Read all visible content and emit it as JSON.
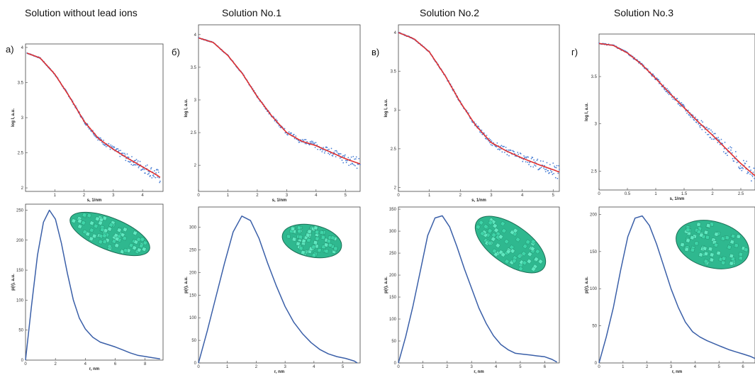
{
  "columns": [
    {
      "title": "Solution without lead ions",
      "letter": "а)"
    },
    {
      "title": "Solution No.1",
      "letter": "б)"
    },
    {
      "title": "Solution No.2",
      "letter": "в)"
    },
    {
      "title": "Solution No.3",
      "letter": "г)"
    }
  ],
  "colors": {
    "fit": "#e03030",
    "exp": "#4a7fd4",
    "pr": "#3a5fa8",
    "model": "#3fd4a8"
  },
  "chart_data": [
    {
      "type": "scatter",
      "panel": "а) scattering",
      "xlabel": "s, 1/nm",
      "ylabel": "log I, a.u.",
      "xlim": [
        0,
        4.7
      ],
      "ylim": [
        1.95,
        4.05
      ],
      "xticks": [
        1,
        2,
        3,
        4
      ],
      "yticks": [
        2,
        2.5,
        3,
        3.5,
        4
      ],
      "fit": {
        "x": [
          0.05,
          0.5,
          1,
          1.5,
          2,
          2.5,
          3,
          3.5,
          4,
          4.5,
          4.6
        ],
        "y": [
          3.92,
          3.85,
          3.62,
          3.3,
          2.95,
          2.7,
          2.55,
          2.42,
          2.3,
          2.18,
          2.15
        ]
      }
    },
    {
      "type": "line",
      "panel": "а) p(r)",
      "xlabel": "r, nm",
      "ylabel": "p(r), a.u.",
      "xlim": [
        0,
        9.2
      ],
      "ylim": [
        0,
        260
      ],
      "xticks": [
        0,
        2,
        4,
        6,
        8
      ],
      "yticks": [
        0,
        50,
        100,
        150,
        200,
        250
      ],
      "x": [
        0,
        0.4,
        0.8,
        1.2,
        1.6,
        2,
        2.4,
        2.8,
        3.2,
        3.6,
        4,
        4.5,
        5,
        5.5,
        6,
        6.5,
        7,
        7.5,
        8,
        8.5,
        9
      ],
      "y": [
        0,
        90,
        175,
        230,
        250,
        235,
        195,
        145,
        100,
        70,
        52,
        38,
        30,
        26,
        22,
        17,
        12,
        8,
        6,
        4,
        2
      ]
    },
    {
      "type": "scatter",
      "panel": "б) scattering",
      "xlabel": "s, 1/nm",
      "ylabel": "log I, a.u.",
      "xlim": [
        0,
        5.5
      ],
      "ylim": [
        1.6,
        4.15
      ],
      "xticks": [
        0,
        1,
        2,
        3,
        4,
        5
      ],
      "yticks": [
        2,
        2.5,
        3,
        3.5,
        4
      ],
      "fit": {
        "x": [
          0,
          0.5,
          1,
          1.5,
          2,
          2.5,
          3,
          3.5,
          4,
          4.5,
          5,
          5.5
        ],
        "y": [
          3.95,
          3.88,
          3.68,
          3.4,
          3.05,
          2.75,
          2.5,
          2.37,
          2.3,
          2.2,
          2.1,
          2.02
        ]
      }
    },
    {
      "type": "line",
      "panel": "б) p(r)",
      "xlabel": "r, nm",
      "ylabel": "p(r), a.u.",
      "xlim": [
        0,
        5.6
      ],
      "ylim": [
        0,
        345
      ],
      "xticks": [
        0,
        1,
        2,
        3,
        4,
        5
      ],
      "yticks": [
        0,
        50,
        100,
        150,
        200,
        250,
        300
      ],
      "x": [
        0,
        0.3,
        0.6,
        0.9,
        1.2,
        1.5,
        1.8,
        2.1,
        2.4,
        2.7,
        3,
        3.3,
        3.6,
        3.9,
        4.2,
        4.5,
        4.8,
        5.1,
        5.4,
        5.5
      ],
      "y": [
        0,
        70,
        145,
        220,
        290,
        325,
        315,
        275,
        220,
        170,
        125,
        90,
        65,
        45,
        30,
        20,
        14,
        10,
        4,
        0
      ]
    },
    {
      "type": "scatter",
      "panel": "в) scattering",
      "xlabel": "s, 1/nm",
      "ylabel": "log I, a.u.",
      "xlim": [
        0,
        5.2
      ],
      "ylim": [
        1.95,
        4.1
      ],
      "xticks": [
        0,
        1,
        2,
        3,
        4,
        5
      ],
      "yticks": [
        2,
        2.5,
        3,
        3.5,
        4
      ],
      "fit": {
        "x": [
          0,
          0.5,
          1,
          1.5,
          2,
          2.5,
          3,
          3.5,
          4,
          4.5,
          5,
          5.2
        ],
        "y": [
          4.0,
          3.92,
          3.75,
          3.45,
          3.1,
          2.8,
          2.58,
          2.47,
          2.38,
          2.3,
          2.23,
          2.2
        ]
      }
    },
    {
      "type": "line",
      "panel": "в) p(r)",
      "xlabel": "r, nm",
      "ylabel": "p(r), a.u.",
      "xlim": [
        0,
        6.6
      ],
      "ylim": [
        0,
        355
      ],
      "xticks": [
        0,
        1,
        2,
        3,
        4,
        5,
        6
      ],
      "yticks": [
        0,
        50,
        100,
        150,
        200,
        250,
        300,
        350
      ],
      "x": [
        0,
        0.3,
        0.6,
        0.9,
        1.2,
        1.5,
        1.8,
        2.1,
        2.4,
        2.7,
        3,
        3.3,
        3.6,
        3.9,
        4.2,
        4.5,
        4.8,
        5.1,
        5.4,
        5.7,
        6,
        6.3,
        6.5
      ],
      "y": [
        0,
        60,
        130,
        210,
        290,
        330,
        335,
        310,
        265,
        215,
        170,
        125,
        90,
        62,
        42,
        30,
        22,
        20,
        18,
        16,
        14,
        8,
        2
      ]
    },
    {
      "type": "scatter",
      "panel": "г) scattering",
      "xlabel": "s, 1/nm",
      "ylabel": "log I, a.u.",
      "xlim": [
        0,
        2.75
      ],
      "ylim": [
        2.3,
        3.95
      ],
      "xticks": [
        0,
        0.5,
        1,
        1.5,
        2,
        2.5
      ],
      "yticks": [
        2.5,
        3,
        3.5
      ],
      "fit": {
        "x": [
          0,
          0.25,
          0.5,
          0.75,
          1,
          1.25,
          1.5,
          1.75,
          2,
          2.25,
          2.5,
          2.75
        ],
        "y": [
          3.85,
          3.83,
          3.75,
          3.63,
          3.48,
          3.32,
          3.17,
          3.02,
          2.88,
          2.73,
          2.58,
          2.45
        ]
      }
    },
    {
      "type": "line",
      "panel": "г) p(r)",
      "xlabel": "r, nm",
      "ylabel": "p(r), a.u.",
      "xlim": [
        0,
        6.5
      ],
      "ylim": [
        0,
        210
      ],
      "xticks": [
        0,
        1,
        2,
        3,
        4,
        5,
        6
      ],
      "yticks": [
        0,
        50,
        100,
        150,
        200
      ],
      "x": [
        0,
        0.3,
        0.6,
        0.9,
        1.2,
        1.5,
        1.8,
        2.1,
        2.4,
        2.7,
        3,
        3.3,
        3.6,
        3.9,
        4.2,
        4.5,
        4.8,
        5.1,
        5.4,
        5.7,
        6,
        6.3,
        6.5
      ],
      "y": [
        0,
        35,
        75,
        125,
        170,
        195,
        198,
        185,
        160,
        130,
        100,
        75,
        55,
        42,
        35,
        30,
        26,
        22,
        18,
        15,
        12,
        9,
        6
      ]
    }
  ]
}
